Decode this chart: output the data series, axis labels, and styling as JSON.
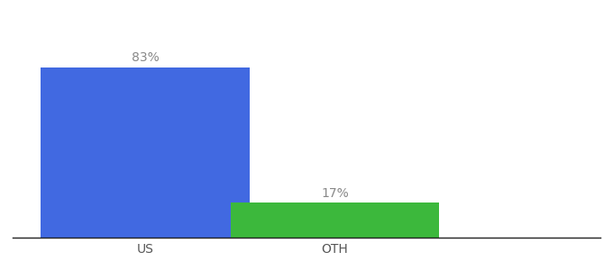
{
  "categories": [
    "US",
    "OTH"
  ],
  "values": [
    83,
    17
  ],
  "bar_colors": [
    "#4169e1",
    "#3cb83c"
  ],
  "labels": [
    "83%",
    "17%"
  ],
  "background_color": "#ffffff",
  "ylim": [
    0,
    100
  ],
  "bar_width": 0.55,
  "label_fontsize": 10,
  "tick_fontsize": 10,
  "label_color": "#888888",
  "tick_color": "#555555",
  "spine_color": "#222222"
}
